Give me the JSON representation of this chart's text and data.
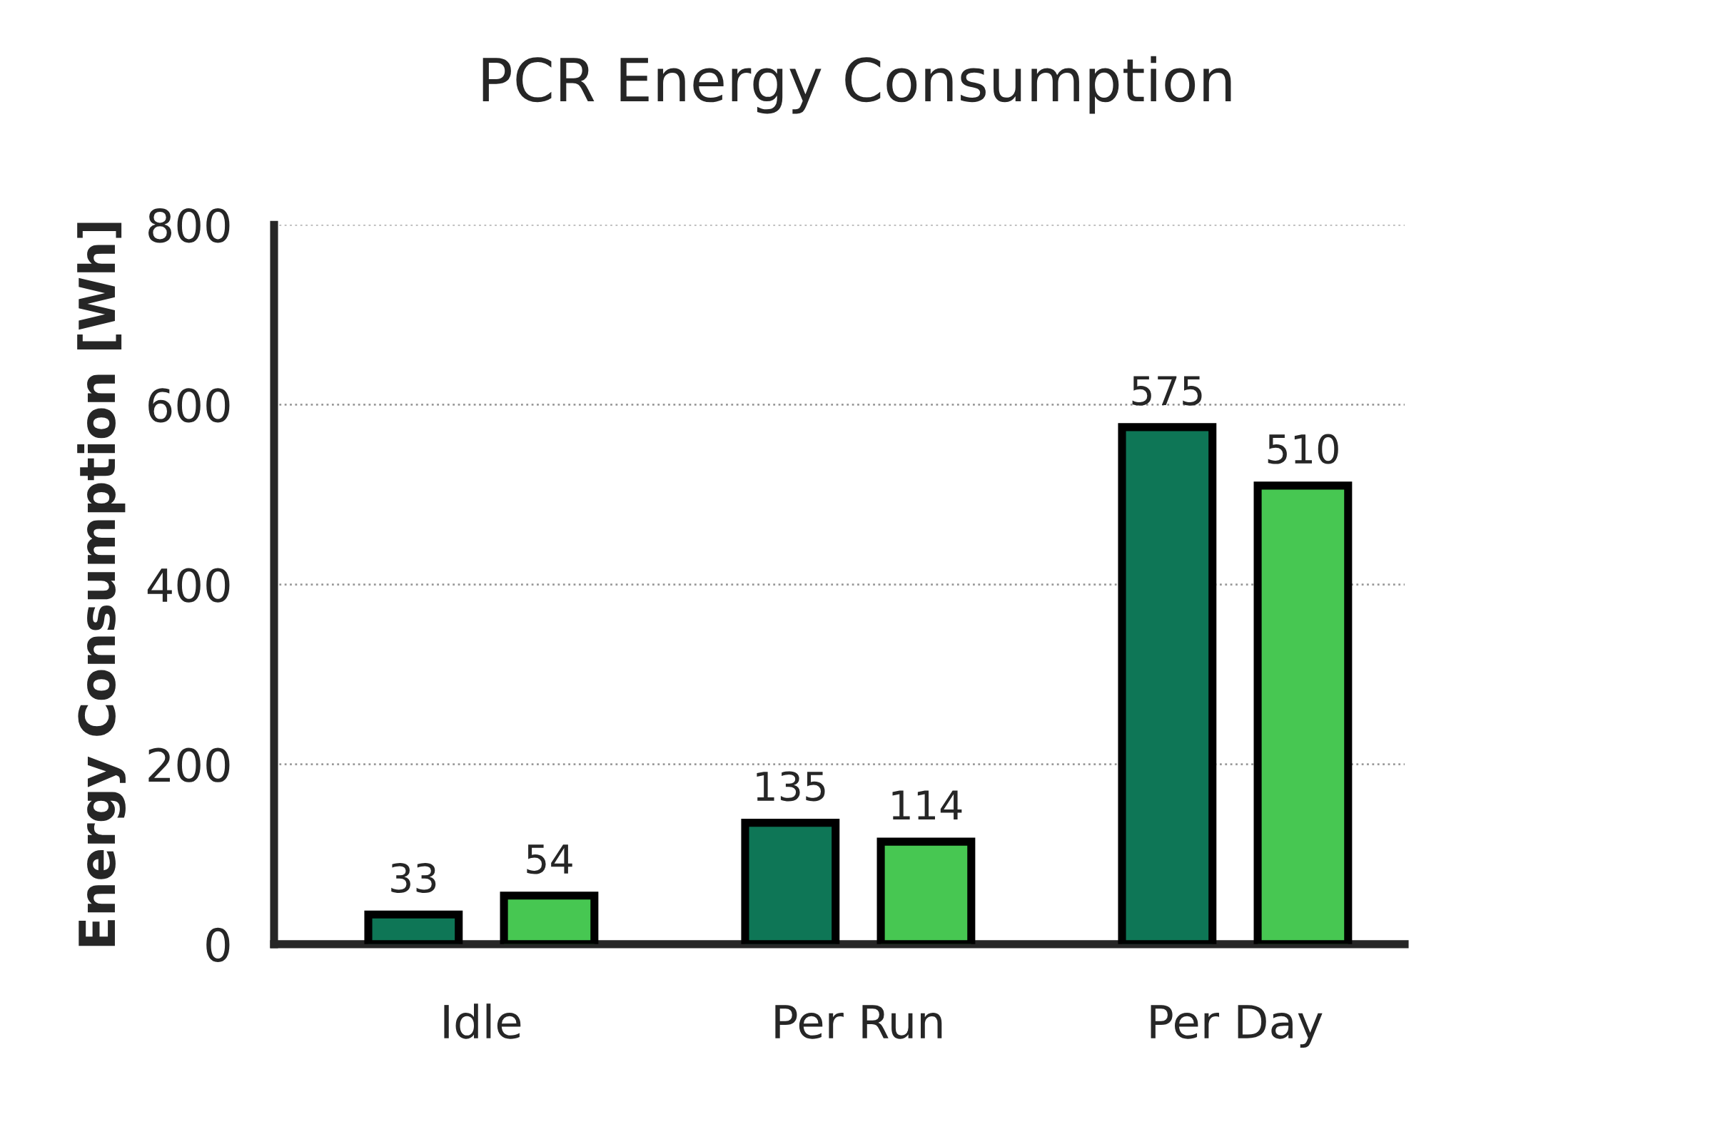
{
  "chart_data": {
    "type": "bar",
    "title": "PCR Energy Consumption",
    "ylabel": "Energy Consumption [Wh]",
    "categories": [
      "Idle",
      "Per Run",
      "Per Day"
    ],
    "series": [
      {
        "color": "#0e7656",
        "values": [
          33,
          135,
          575
        ]
      },
      {
        "color": "#47c752",
        "values": [
          54,
          114,
          510
        ]
      }
    ],
    "ylim": [
      0,
      800
    ],
    "yticks": [
      0,
      200,
      400,
      600,
      800
    ],
    "grid": "y",
    "data_labels": true
  }
}
